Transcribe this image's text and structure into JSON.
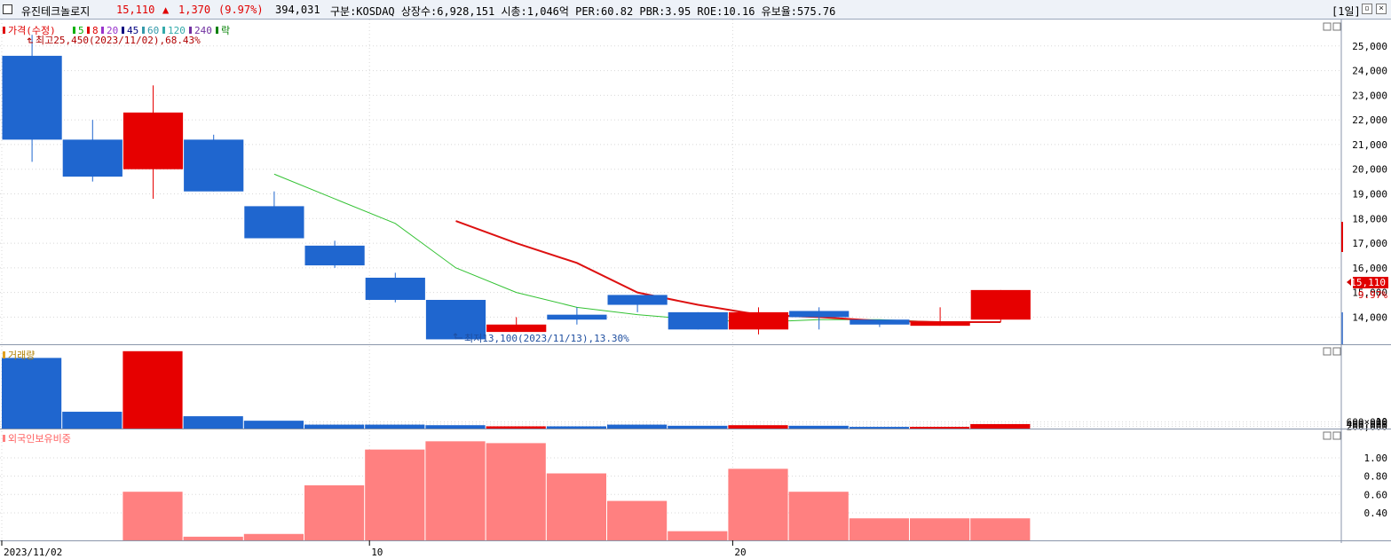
{
  "header": {
    "name": "유진테크놀로지",
    "price": "15,110",
    "change_arrow": "▲",
    "change": "1,370",
    "change_pct": "(9.97%)",
    "volume": "394,031",
    "info": "구분:KOSDAQ 상장수:6,928,151 시총:1,046억 PER:60.82 PBR:3.95 ROE:10.16 유보율:575.76",
    "period": "[1일]"
  },
  "legend": {
    "price": [
      {
        "label": "가격(수정)",
        "color": "#e00000"
      },
      {
        "label": "5",
        "color": "#00b000"
      },
      {
        "label": "8",
        "color": "#e00000"
      },
      {
        "label": "20",
        "color": "#9933cc"
      },
      {
        "label": "45",
        "color": "#000080"
      },
      {
        "label": "60",
        "color": "#3399aa"
      },
      {
        "label": "120",
        "color": "#33aaaa"
      },
      {
        "label": "240",
        "color": "#7030a0"
      },
      {
        "label": "락",
        "color": "#008000"
      }
    ],
    "volume": "거래량",
    "foreign": "외국인보유비중"
  },
  "annotations": {
    "high": "최고25,450(2023/11/02),68.43%",
    "low": "최저13,100(2023/11/13),13.30%"
  },
  "price_tag": {
    "price": "15,110",
    "pct": "9.97%"
  },
  "volume_unit": "× 10",
  "colors": {
    "up": "#e60000",
    "down": "#1f66cf",
    "ma5": "#33c233",
    "ma8": "#dd1111",
    "foreign": "#ff8080"
  },
  "chart_data": {
    "type": "candlestick",
    "x_tick_labels": [
      "2023/11/02",
      "10",
      "20"
    ],
    "dates": [
      "2023/11/02",
      "2023/11/03",
      "2023/11/06",
      "2023/11/07",
      "2023/11/08",
      "2023/11/09",
      "2023/11/10",
      "2023/11/13",
      "2023/11/14",
      "2023/11/15",
      "2023/11/16",
      "2023/11/17",
      "2023/11/20",
      "2023/11/21",
      "2023/11/22",
      "2023/11/23",
      "2023/11/24"
    ],
    "tick_label_indices": [
      0,
      6,
      12
    ],
    "candles": [
      {
        "open": 24600,
        "high": 25450,
        "low": 20300,
        "close": 21200
      },
      {
        "open": 21200,
        "high": 22000,
        "low": 19500,
        "close": 19700
      },
      {
        "open": 20000,
        "high": 23400,
        "low": 18800,
        "close": 22300
      },
      {
        "open": 21200,
        "high": 21400,
        "low": 19100,
        "close": 19100
      },
      {
        "open": 18500,
        "high": 19100,
        "low": 17200,
        "close": 17200
      },
      {
        "open": 16900,
        "high": 17100,
        "low": 16000,
        "close": 16100
      },
      {
        "open": 15600,
        "high": 15800,
        "low": 14600,
        "close": 14700
      },
      {
        "open": 14700,
        "high": 14700,
        "low": 13100,
        "close": 13100
      },
      {
        "open": 13400,
        "high": 14000,
        "low": 13400,
        "close": 13700
      },
      {
        "open": 14100,
        "high": 14400,
        "low": 13700,
        "close": 13900
      },
      {
        "open": 14900,
        "high": 14900,
        "low": 14200,
        "close": 14500
      },
      {
        "open": 14200,
        "high": 14200,
        "low": 13500,
        "close": 13500
      },
      {
        "open": 13500,
        "high": 14400,
        "low": 13300,
        "close": 14200
      },
      {
        "open": 14250,
        "high": 14400,
        "low": 13500,
        "close": 14000
      },
      {
        "open": 13900,
        "high": 13900,
        "low": 13600,
        "close": 13700
      },
      {
        "open": 13650,
        "high": 14400,
        "low": 13650,
        "close": 13800
      },
      {
        "open": 13900,
        "high": 15100,
        "low": 13800,
        "close": 15100
      }
    ],
    "ma5": [
      null,
      null,
      null,
      null,
      19800,
      18800,
      17800,
      16000,
      15000,
      14400,
      14100,
      13900,
      13800,
      13900,
      13900,
      13800,
      13800
    ],
    "ma8": [
      null,
      null,
      null,
      null,
      null,
      null,
      null,
      17900,
      17000,
      16200,
      15000,
      14500,
      14100,
      14000,
      13850,
      13800,
      13800
    ],
    "price_axis": {
      "min": 12900,
      "max": 26000,
      "ticks": [
        14000,
        15000,
        16000,
        17000,
        18000,
        19000,
        20000,
        21000,
        22000,
        23000,
        24000,
        25000
      ]
    },
    "volume": {
      "values": [
        6300000,
        1500000,
        6900000,
        1100000,
        700000,
        350000,
        350000,
        300000,
        200000,
        200000,
        350000,
        250000,
        300000,
        250000,
        150000,
        150000,
        400000
      ],
      "ticks": [
        200000,
        400000,
        600000
      ],
      "axis_max": 720000
    },
    "foreign_ratio": {
      "values": [
        0.1,
        0.1,
        0.63,
        0.14,
        0.17,
        0.7,
        1.09,
        1.18,
        1.16,
        0.83,
        0.53,
        0.2,
        0.88,
        0.63,
        0.34,
        0.34,
        0.34
      ],
      "ticks": [
        0.4,
        0.6,
        0.8,
        1.0
      ],
      "axis_min": 0.1,
      "axis_max": 1.28
    }
  }
}
